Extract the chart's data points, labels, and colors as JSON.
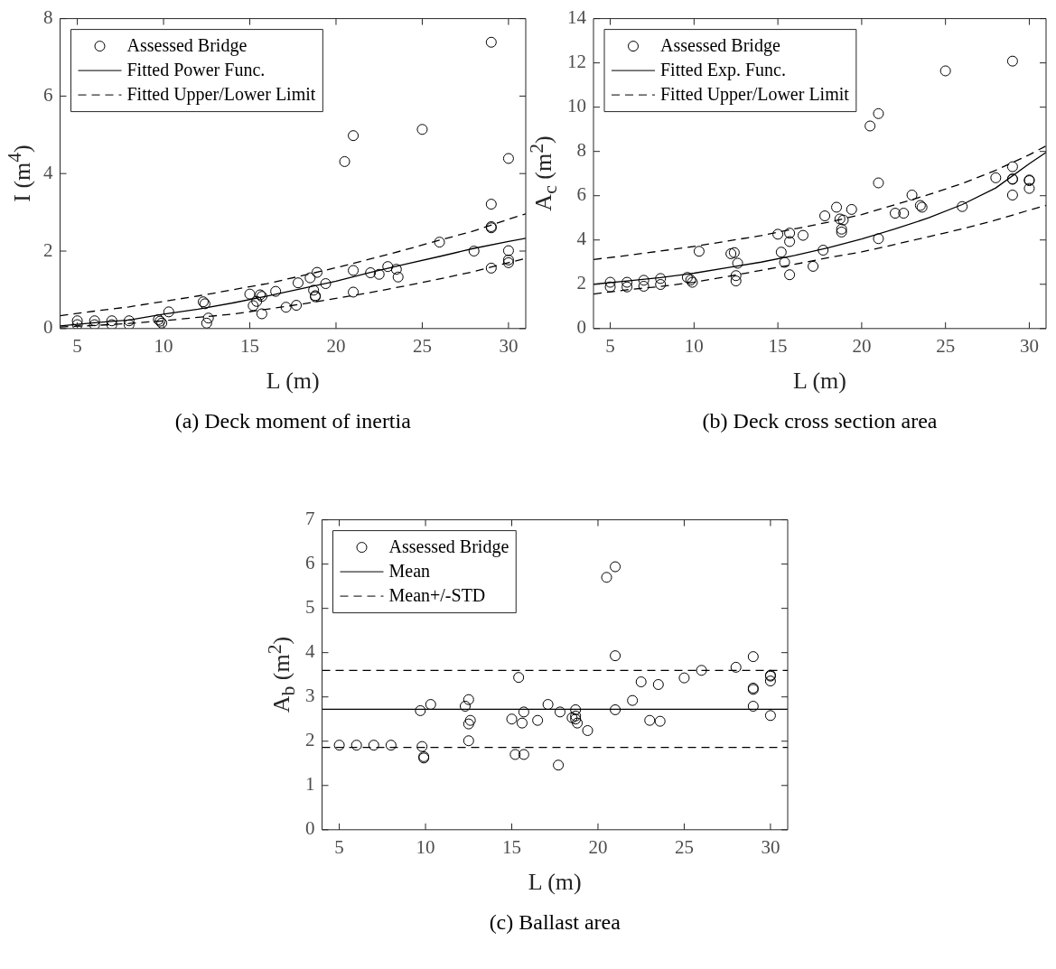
{
  "chart_data": [
    {
      "type": "scatter",
      "title": "(a) Deck moment of inertia",
      "xlabel": "L (m)",
      "ylabel": "I (m$^{4}$)",
      "xlim": [
        4,
        31
      ],
      "xticks": [
        5,
        10,
        15,
        20,
        25,
        30
      ],
      "ylim": [
        0,
        8
      ],
      "yticks": [
        0,
        2,
        4,
        6,
        8
      ],
      "legend": "top left",
      "series": [
        {
          "type": "scatter",
          "name": "Assessed Bridge",
          "color": "#000000",
          "marker": "circle",
          "x": [
            5,
            5,
            6,
            6,
            7,
            7,
            8,
            8,
            9.7,
            9.8,
            9.9,
            10.3,
            12.3,
            12.4,
            12.6,
            12.5,
            15,
            15.2,
            15.4,
            15.6,
            15.7,
            15.7,
            16.5,
            17.1,
            17.7,
            17.8,
            18.5,
            18.7,
            18.8,
            18.8,
            18.9,
            19.4,
            20.5,
            21,
            21,
            21,
            22,
            22.5,
            23,
            23.5,
            23.6,
            25,
            26,
            28,
            29,
            29,
            29,
            29,
            29,
            30,
            30,
            30,
            30
          ],
          "values": [
            0.2,
            0.1,
            0.2,
            0.1,
            0.2,
            0.1,
            0.2,
            0.1,
            0.23,
            0.19,
            0.14,
            0.43,
            0.69,
            0.64,
            0.27,
            0.14,
            0.89,
            0.59,
            0.7,
            0.87,
            0.83,
            0.38,
            0.96,
            0.55,
            0.6,
            1.18,
            1.31,
            0.99,
            0.85,
            0.82,
            1.45,
            1.16,
            4.31,
            4.98,
            1.5,
            0.94,
            1.44,
            1.4,
            1.6,
            1.53,
            1.33,
            5.14,
            2.23,
            2.0,
            7.39,
            3.21,
            2.63,
            2.6,
            1.56,
            4.39,
            2.01,
            1.77,
            1.7
          ]
        },
        {
          "type": "line",
          "name": "Fitted Power Func.",
          "color": "#000000",
          "line_style": "solid",
          "x": [
            4,
            6,
            8,
            10,
            12,
            14,
            16,
            18,
            20,
            22,
            24,
            26,
            28,
            30,
            31
          ],
          "values": [
            0.07,
            0.15,
            0.22,
            0.37,
            0.5,
            0.66,
            0.84,
            1.03,
            1.22,
            1.45,
            1.66,
            1.86,
            2.07,
            2.25,
            2.33
          ]
        },
        {
          "type": "line",
          "name": "Fitted Upper/Lower Limit",
          "color": "#000000",
          "line_style": "dashed",
          "x": [
            4,
            6,
            8,
            10,
            12,
            14,
            16,
            18,
            20,
            22,
            24,
            26,
            28,
            30,
            31
          ],
          "values": [
            0.33,
            0.45,
            0.56,
            0.7,
            0.84,
            1.0,
            1.16,
            1.36,
            1.57,
            1.8,
            2.03,
            2.28,
            2.52,
            2.82,
            2.96
          ]
        },
        {
          "type": "line",
          "color": "#000000",
          "line_style": "dashed",
          "x": [
            4,
            6,
            8,
            10,
            12,
            14,
            16,
            18,
            20,
            22,
            24,
            26,
            28,
            30,
            31
          ],
          "values": [
            0.04,
            0.08,
            0.13,
            0.2,
            0.29,
            0.37,
            0.5,
            0.63,
            0.78,
            0.93,
            1.1,
            1.28,
            1.47,
            1.7,
            1.81
          ]
        }
      ]
    },
    {
      "type": "scatter",
      "title": "(b) Deck cross section area",
      "xlabel": "L (m)",
      "ylabel": "A$_{c}$ (m$^{2}$)",
      "xlim": [
        4,
        31
      ],
      "xticks": [
        5,
        10,
        15,
        20,
        25,
        30
      ],
      "ylim": [
        0,
        14
      ],
      "yticks": [
        0,
        2,
        4,
        6,
        8,
        10,
        12,
        14
      ],
      "legend": "top left",
      "series": [
        {
          "type": "scatter",
          "name": "Assessed Bridge",
          "color": "#000000",
          "marker": "circle",
          "x": [
            5,
            5,
            6,
            6,
            7,
            7,
            8,
            8,
            9.6,
            9.8,
            9.9,
            10.3,
            12.2,
            12.4,
            12.6,
            12.5,
            12.5,
            15,
            15.2,
            15.4,
            15.7,
            15.7,
            15.7,
            16.5,
            17.1,
            17.7,
            17.8,
            18.5,
            18.7,
            18.8,
            18.8,
            18.9,
            19.4,
            20.5,
            21,
            21,
            21,
            22,
            22.5,
            23,
            23.5,
            23.6,
            25,
            26,
            28,
            29,
            29,
            29,
            29,
            29,
            30,
            30,
            30
          ],
          "values": [
            2.09,
            1.88,
            2.09,
            1.88,
            2.18,
            1.91,
            2.26,
            1.99,
            2.31,
            2.19,
            2.09,
            3.49,
            3.38,
            3.43,
            2.95,
            2.39,
            2.15,
            4.26,
            3.45,
            2.99,
            4.31,
            3.93,
            2.43,
            4.21,
            2.81,
            3.54,
            5.09,
            5.48,
            4.95,
            4.36,
            4.49,
            4.9,
            5.38,
            9.15,
            9.71,
            6.58,
            4.06,
            5.21,
            5.21,
            6.03,
            5.56,
            5.48,
            11.64,
            5.51,
            6.81,
            12.08,
            7.31,
            6.76,
            6.74,
            6.03,
            6.71,
            6.68,
            6.33
          ]
        },
        {
          "type": "line",
          "name": "Fitted Exp. Func.",
          "color": "#000000",
          "line_style": "solid",
          "x": [
            4,
            6,
            8,
            10,
            12,
            14,
            16,
            18,
            20,
            22,
            24,
            26,
            28,
            30,
            31
          ],
          "values": [
            2.0,
            2.15,
            2.3,
            2.5,
            2.75,
            3.0,
            3.3,
            3.65,
            4.05,
            4.5,
            5.0,
            5.6,
            6.35,
            7.45,
            7.96
          ]
        },
        {
          "type": "line",
          "name": "Fitted Upper/Lower Limit",
          "color": "#000000",
          "line_style": "dashed",
          "x": [
            4,
            6,
            8,
            10,
            12,
            14,
            16,
            18,
            20,
            22,
            24,
            26,
            28,
            30,
            31
          ],
          "values": [
            3.12,
            3.3,
            3.5,
            3.71,
            3.95,
            4.2,
            4.5,
            4.8,
            5.15,
            5.6,
            6.05,
            6.55,
            7.15,
            7.85,
            8.25
          ]
        },
        {
          "type": "line",
          "color": "#000000",
          "line_style": "dashed",
          "x": [
            4,
            6,
            8,
            10,
            12,
            14,
            16,
            18,
            20,
            22,
            24,
            26,
            28,
            30,
            31
          ],
          "values": [
            1.56,
            1.75,
            1.9,
            2.09,
            2.35,
            2.63,
            2.9,
            3.2,
            3.46,
            3.8,
            4.15,
            4.5,
            4.9,
            5.35,
            5.56
          ]
        }
      ]
    },
    {
      "type": "scatter",
      "title": "(c) Ballast area",
      "xlabel": "L (m)",
      "ylabel": "A$_{b}$ (m$^{2}$)",
      "xlim": [
        4,
        31
      ],
      "xticks": [
        5,
        10,
        15,
        20,
        25,
        30
      ],
      "ylim": [
        0,
        7
      ],
      "yticks": [
        0,
        1,
        2,
        3,
        4,
        5,
        6,
        7
      ],
      "legend": "top left",
      "series": [
        {
          "type": "scatter",
          "name": "Assessed Bridge",
          "color": "#000000",
          "marker": "circle",
          "x": [
            5,
            6,
            7,
            8,
            9.7,
            9.8,
            9.9,
            9.9,
            10.3,
            12.3,
            12.5,
            12.5,
            12.6,
            12.5,
            15,
            15.2,
            15.4,
            15.6,
            15.7,
            15.7,
            16.5,
            17.1,
            17.7,
            17.8,
            18.5,
            18.7,
            18.7,
            18.7,
            18.8,
            19.4,
            20.5,
            21,
            21,
            21,
            22,
            22.5,
            23,
            23.5,
            23.6,
            25,
            26,
            28,
            29,
            29,
            29,
            29,
            30,
            30,
            30,
            30
          ],
          "values": [
            1.91,
            1.91,
            1.91,
            1.91,
            2.69,
            1.88,
            1.65,
            1.62,
            2.83,
            2.79,
            2.94,
            2.39,
            2.47,
            2.01,
            2.5,
            1.7,
            3.44,
            2.41,
            2.66,
            1.7,
            2.47,
            2.83,
            1.46,
            2.66,
            2.53,
            2.71,
            2.57,
            2.5,
            2.41,
            2.24,
            5.7,
            5.94,
            3.93,
            2.71,
            2.92,
            3.34,
            2.47,
            3.28,
            2.45,
            3.43,
            3.6,
            3.67,
            3.91,
            3.2,
            3.17,
            2.79,
            3.49,
            3.47,
            3.36,
            2.58
          ]
        },
        {
          "type": "line",
          "name": "Mean",
          "color": "#000000",
          "line_style": "solid",
          "x": [
            4,
            31
          ],
          "values": [
            2.72,
            2.72
          ]
        },
        {
          "type": "line",
          "name": "Mean+/-STD",
          "color": "#000000",
          "line_style": "dashed",
          "x": [
            4,
            31
          ],
          "values": [
            3.6,
            3.6
          ]
        },
        {
          "type": "line",
          "color": "#000000",
          "line_style": "dashed",
          "x": [
            4,
            31
          ],
          "values": [
            1.86,
            1.86
          ]
        }
      ]
    }
  ]
}
